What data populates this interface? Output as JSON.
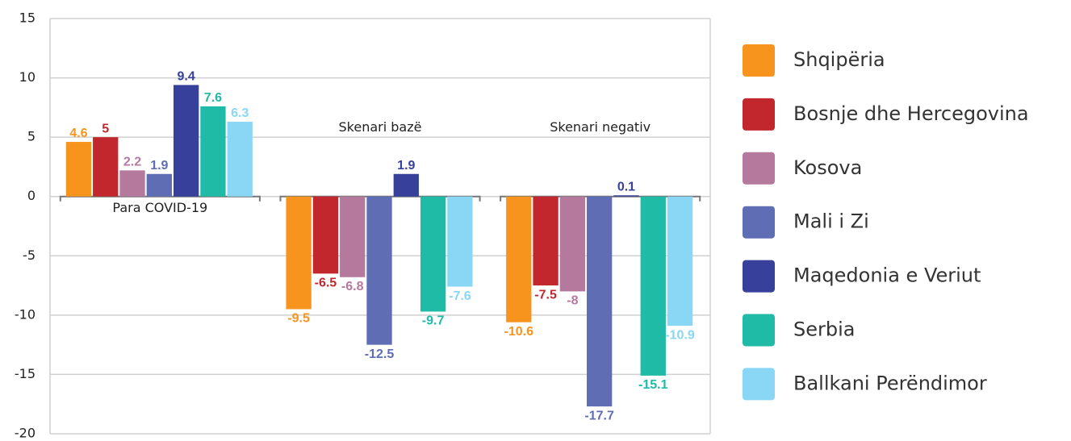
{
  "chart_data": {
    "type": "bar",
    "categories": [
      "Para COVID-19",
      "Skenari bazë",
      "Skenari negativ"
    ],
    "series": [
      {
        "name": "Shqipëria",
        "color": "#f7941d",
        "values": [
          4.6,
          -9.5,
          -10.6
        ]
      },
      {
        "name": "Bosnje dhe Hercegovina",
        "color": "#c1272d",
        "values": [
          5,
          -6.5,
          -7.5
        ]
      },
      {
        "name": "Kosova",
        "color": "#b5799e",
        "values": [
          2.2,
          -6.8,
          -8
        ]
      },
      {
        "name": "Mali i Zi",
        "color": "#5f6db5",
        "values": [
          1.9,
          -12.5,
          -17.7
        ]
      },
      {
        "name": "Maqedonia e Veriut",
        "color": "#37409a",
        "values": [
          9.4,
          1.9,
          0.1
        ]
      },
      {
        "name": "Serbia",
        "color": "#1fbba6",
        "values": [
          7.6,
          -9.7,
          -15.1
        ]
      },
      {
        "name": "Ballkani Perëndimor",
        "color": "#8ad7f5",
        "values": [
          6.3,
          -7.6,
          -10.9
        ]
      }
    ],
    "ylim": [
      -20,
      15
    ],
    "yticks": [
      -20,
      -15,
      -10,
      -5,
      0,
      5,
      10,
      15
    ],
    "grid": true,
    "legend": "right"
  }
}
